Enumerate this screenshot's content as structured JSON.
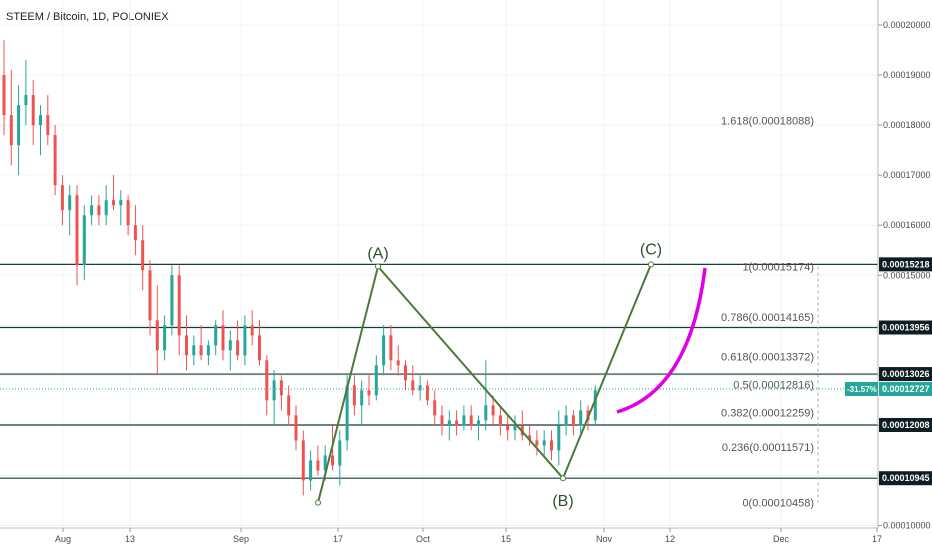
{
  "title": "STEEM / Bitcoin, 1D, POLONIEX",
  "chart_data": {
    "type": "candlestick",
    "ylim": [
      9.95e-05,
      0.000205
    ],
    "y_ticks": [
      "0.00010000",
      "0.00011000",
      "0.00012000",
      "0.00013000",
      "0.00014000",
      "0.00015000",
      "0.00016000",
      "0.00017000",
      "0.00018000",
      "0.00019000",
      "0.00020000"
    ],
    "x_ticks": [
      "Aug",
      "13",
      "Sep",
      "17",
      "Oct",
      "15",
      "Nov",
      "12",
      "Dec",
      "17"
    ],
    "horizontal_levels": [
      {
        "label": "0.00015218",
        "value": 0.00015218
      },
      {
        "label": "0.00013956",
        "value": 0.00013956
      },
      {
        "label": "0.00013026",
        "value": 0.00013026
      },
      {
        "label": "0.00012008",
        "value": 0.00012008
      },
      {
        "label": "0.00010945",
        "value": 0.00010945
      }
    ],
    "fib_levels": [
      {
        "label": "1.618(0.00018088)",
        "value": 0.00018088
      },
      {
        "label": "1(0.00015174)",
        "value": 0.00015174
      },
      {
        "label": "0.786(0.00014165)",
        "value": 0.00014165
      },
      {
        "label": "0.618(0.00013372)",
        "value": 0.00013372
      },
      {
        "label": "0.5(0.00012816)",
        "value": 0.00012816
      },
      {
        "label": "0.382(0.00012259)",
        "value": 0.00012259
      },
      {
        "label": "0.236(0.00011571)",
        "value": 0.00011571
      },
      {
        "label": "0(0.00010458)",
        "value": 0.00010458
      }
    ],
    "current_price": {
      "label": "0.00012727",
      "value": 0.00012727,
      "change": "-31.57%"
    },
    "waves": [
      {
        "label": "(A)",
        "value": 0.00015174
      },
      {
        "label": "(B)",
        "value": 0.00010945
      },
      {
        "label": "(C)",
        "value": 0.00015218
      }
    ],
    "candles": [
      {
        "o": 0.00019,
        "h": 0.000197,
        "l": 0.000178,
        "c": 0.000182
      },
      {
        "o": 0.000182,
        "h": 0.000191,
        "l": 0.000172,
        "c": 0.000176
      },
      {
        "o": 0.000176,
        "h": 0.000188,
        "l": 0.00017,
        "c": 0.000184
      },
      {
        "o": 0.000184,
        "h": 0.000193,
        "l": 0.00018,
        "c": 0.000186
      },
      {
        "o": 0.000186,
        "h": 0.000189,
        "l": 0.000176,
        "c": 0.00018
      },
      {
        "o": 0.00018,
        "h": 0.000184,
        "l": 0.000174,
        "c": 0.000182
      },
      {
        "o": 0.000182,
        "h": 0.000186,
        "l": 0.000176,
        "c": 0.000178
      },
      {
        "o": 0.000178,
        "h": 0.00018,
        "l": 0.000166,
        "c": 0.000168
      },
      {
        "o": 0.000168,
        "h": 0.00017,
        "l": 0.00016,
        "c": 0.000163
      },
      {
        "o": 0.000163,
        "h": 0.000168,
        "l": 0.000158,
        "c": 0.000166
      },
      {
        "o": 0.000166,
        "h": 0.000168,
        "l": 0.000148,
        "c": 0.000152
      },
      {
        "o": 0.000152,
        "h": 0.000164,
        "l": 0.000149,
        "c": 0.000162
      },
      {
        "o": 0.000162,
        "h": 0.000166,
        "l": 0.00016,
        "c": 0.000164
      },
      {
        "o": 0.000164,
        "h": 0.000166,
        "l": 0.00016,
        "c": 0.000162
      },
      {
        "o": 0.000162,
        "h": 0.000168,
        "l": 0.00016,
        "c": 0.000165
      },
      {
        "o": 0.000165,
        "h": 0.00017,
        "l": 0.000163,
        "c": 0.000164
      },
      {
        "o": 0.000164,
        "h": 0.000167,
        "l": 0.00016,
        "c": 0.000165
      },
      {
        "o": 0.000165,
        "h": 0.000166,
        "l": 0.000158,
        "c": 0.00016
      },
      {
        "o": 0.00016,
        "h": 0.000164,
        "l": 0.000154,
        "c": 0.000157
      },
      {
        "o": 0.000157,
        "h": 0.00016,
        "l": 0.000147,
        "c": 0.000151
      },
      {
        "o": 0.000151,
        "h": 0.000153,
        "l": 0.000138,
        "c": 0.000141
      },
      {
        "o": 0.000141,
        "h": 0.000148,
        "l": 0.00013,
        "c": 0.000135
      },
      {
        "o": 0.000135,
        "h": 0.000142,
        "l": 0.000133,
        "c": 0.00014
      },
      {
        "o": 0.00014,
        "h": 0.000152,
        "l": 0.000138,
        "c": 0.00015
      },
      {
        "o": 0.00015,
        "h": 0.000152,
        "l": 0.000134,
        "c": 0.000138
      },
      {
        "o": 0.000138,
        "h": 0.000142,
        "l": 0.000131,
        "c": 0.000134
      },
      {
        "o": 0.000134,
        "h": 0.000138,
        "l": 0.000132,
        "c": 0.000136
      },
      {
        "o": 0.000136,
        "h": 0.00014,
        "l": 0.000133,
        "c": 0.000134
      },
      {
        "o": 0.000134,
        "h": 0.000137,
        "l": 0.000132,
        "c": 0.000136
      },
      {
        "o": 0.000136,
        "h": 0.000141,
        "l": 0.000134,
        "c": 0.00014
      },
      {
        "o": 0.00014,
        "h": 0.000143,
        "l": 0.000133,
        "c": 0.000135
      },
      {
        "o": 0.000135,
        "h": 0.000139,
        "l": 0.000131,
        "c": 0.000137
      },
      {
        "o": 0.000137,
        "h": 0.000141,
        "l": 0.000133,
        "c": 0.000134
      },
      {
        "o": 0.000134,
        "h": 0.000142,
        "l": 0.000132,
        "c": 0.00014
      },
      {
        "o": 0.00014,
        "h": 0.000143,
        "l": 0.000136,
        "c": 0.000138
      },
      {
        "o": 0.000138,
        "h": 0.000141,
        "l": 0.000132,
        "c": 0.000133
      },
      {
        "o": 0.000133,
        "h": 0.000134,
        "l": 0.000122,
        "c": 0.000125
      },
      {
        "o": 0.000125,
        "h": 0.000131,
        "l": 0.00012,
        "c": 0.000129
      },
      {
        "o": 0.000129,
        "h": 0.00013,
        "l": 0.000123,
        "c": 0.000126
      },
      {
        "o": 0.000126,
        "h": 0.000128,
        "l": 0.00012,
        "c": 0.000122
      },
      {
        "o": 0.000122,
        "h": 0.000124,
        "l": 0.000115,
        "c": 0.000117
      },
      {
        "o": 0.000117,
        "h": 0.000119,
        "l": 0.000106,
        "c": 0.000109
      },
      {
        "o": 0.000109,
        "h": 0.000115,
        "l": 0.000107,
        "c": 0.000113
      },
      {
        "o": 0.000113,
        "h": 0.000116,
        "l": 0.00011,
        "c": 0.000111
      },
      {
        "o": 0.000111,
        "h": 0.000116,
        "l": 0.000109,
        "c": 0.000114
      },
      {
        "o": 0.000114,
        "h": 0.00012,
        "l": 0.000111,
        "c": 0.000112
      },
      {
        "o": 0.000112,
        "h": 0.000119,
        "l": 0.000108,
        "c": 0.000117
      },
      {
        "o": 0.000117,
        "h": 0.00013,
        "l": 0.000115,
        "c": 0.000128
      },
      {
        "o": 0.000128,
        "h": 0.00013,
        "l": 0.000122,
        "c": 0.000124
      },
      {
        "o": 0.000124,
        "h": 0.000129,
        "l": 0.00012,
        "c": 0.000127
      },
      {
        "o": 0.000127,
        "h": 0.00013,
        "l": 0.000124,
        "c": 0.000126
      },
      {
        "o": 0.000126,
        "h": 0.000134,
        "l": 0.000125,
        "c": 0.000132
      },
      {
        "o": 0.000132,
        "h": 0.00014,
        "l": 0.00013,
        "c": 0.000138
      },
      {
        "o": 0.000138,
        "h": 0.00014,
        "l": 0.000131,
        "c": 0.000133
      },
      {
        "o": 0.000133,
        "h": 0.000136,
        "l": 0.00013,
        "c": 0.000132
      },
      {
        "o": 0.000132,
        "h": 0.000133,
        "l": 0.000127,
        "c": 0.000129
      },
      {
        "o": 0.000129,
        "h": 0.000132,
        "l": 0.000126,
        "c": 0.000127
      },
      {
        "o": 0.000127,
        "h": 0.00013,
        "l": 0.000125,
        "c": 0.000128
      },
      {
        "o": 0.000128,
        "h": 0.000129,
        "l": 0.000124,
        "c": 0.000125
      },
      {
        "o": 0.000125,
        "h": 0.000127,
        "l": 0.00012,
        "c": 0.000122
      },
      {
        "o": 0.000122,
        "h": 0.000124,
        "l": 0.000118,
        "c": 0.00012
      },
      {
        "o": 0.00012,
        "h": 0.000123,
        "l": 0.000117,
        "c": 0.000121
      },
      {
        "o": 0.000121,
        "h": 0.000123,
        "l": 0.000118,
        "c": 0.00012
      },
      {
        "o": 0.00012,
        "h": 0.000124,
        "l": 0.000119,
        "c": 0.000122
      },
      {
        "o": 0.000122,
        "h": 0.000124,
        "l": 0.000119,
        "c": 0.00012
      },
      {
        "o": 0.00012,
        "h": 0.000122,
        "l": 0.000117,
        "c": 0.000121
      },
      {
        "o": 0.000121,
        "h": 0.000133,
        "l": 0.000119,
        "c": 0.000124
      },
      {
        "o": 0.000124,
        "h": 0.000126,
        "l": 0.00012,
        "c": 0.000122
      },
      {
        "o": 0.000122,
        "h": 0.000124,
        "l": 0.000118,
        "c": 0.00012
      },
      {
        "o": 0.00012,
        "h": 0.000122,
        "l": 0.000117,
        "c": 0.000119
      },
      {
        "o": 0.000119,
        "h": 0.000122,
        "l": 0.000117,
        "c": 0.00012
      },
      {
        "o": 0.00012,
        "h": 0.000123,
        "l": 0.000117,
        "c": 0.000118
      },
      {
        "o": 0.000118,
        "h": 0.00012,
        "l": 0.000116,
        "c": 0.000117
      },
      {
        "o": 0.000117,
        "h": 0.000119,
        "l": 0.000114,
        "c": 0.000116
      },
      {
        "o": 0.000116,
        "h": 0.000119,
        "l": 0.000114,
        "c": 0.000117
      },
      {
        "o": 0.000117,
        "h": 0.000119,
        "l": 0.000113,
        "c": 0.000115
      },
      {
        "o": 0.000115,
        "h": 0.000123,
        "l": 0.000112,
        "c": 0.00012
      },
      {
        "o": 0.00012,
        "h": 0.000124,
        "l": 0.000118,
        "c": 0.000122
      },
      {
        "o": 0.000122,
        "h": 0.000123,
        "l": 0.000118,
        "c": 0.00012
      },
      {
        "o": 0.00012,
        "h": 0.000125,
        "l": 0.000118,
        "c": 0.000123
      },
      {
        "o": 0.000123,
        "h": 0.000124,
        "l": 0.000119,
        "c": 0.000121
      },
      {
        "o": 0.000121,
        "h": 0.000128,
        "l": 0.00012,
        "c": 0.000127
      }
    ]
  }
}
